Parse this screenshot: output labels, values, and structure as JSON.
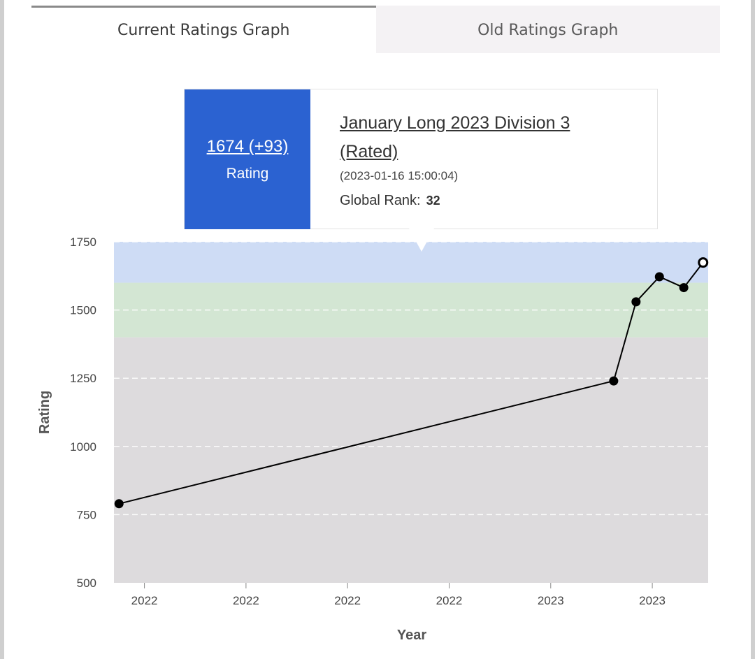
{
  "tabs": [
    {
      "label": "Current Ratings Graph",
      "active": true
    },
    {
      "label": "Old Ratings Graph",
      "active": false
    }
  ],
  "tooltip": {
    "rating": "1674 (+93)",
    "rating_label": "Rating",
    "contest": "January Long 2023 Division 3 (Rated)",
    "datetime": "(2023-01-16 15:00:04)",
    "rank_label": "Global Rank:",
    "rank_value": "32",
    "accent": "#2b62d1"
  },
  "chart_data": {
    "type": "line",
    "xlabel": "Year",
    "ylabel": "Rating",
    "ylim": [
      500,
      1750
    ],
    "yticks": [
      500,
      750,
      1000,
      1250,
      1500,
      1750
    ],
    "xlim": [
      0,
      5.85
    ],
    "xticks": [
      {
        "value": 0.3,
        "label": "2022"
      },
      {
        "value": 1.3,
        "label": "2022"
      },
      {
        "value": 2.3,
        "label": "2022"
      },
      {
        "value": 3.3,
        "label": "2022"
      },
      {
        "value": 4.3,
        "label": "2023"
      },
      {
        "value": 5.3,
        "label": "2023"
      }
    ],
    "bands": [
      {
        "from": 500,
        "to": 1400,
        "color": "#dddbdd"
      },
      {
        "from": 1400,
        "to": 1600,
        "color": "#d3e6d3"
      },
      {
        "from": 1600,
        "to": 1750,
        "color": "#cedcf5"
      }
    ],
    "grid": true,
    "series": [
      {
        "x": [
          0.05,
          4.92,
          5.14,
          5.37,
          5.61,
          5.8
        ],
        "y": [
          790,
          1240,
          1530,
          1622,
          1582,
          1674
        ],
        "color": "#000000"
      }
    ]
  }
}
